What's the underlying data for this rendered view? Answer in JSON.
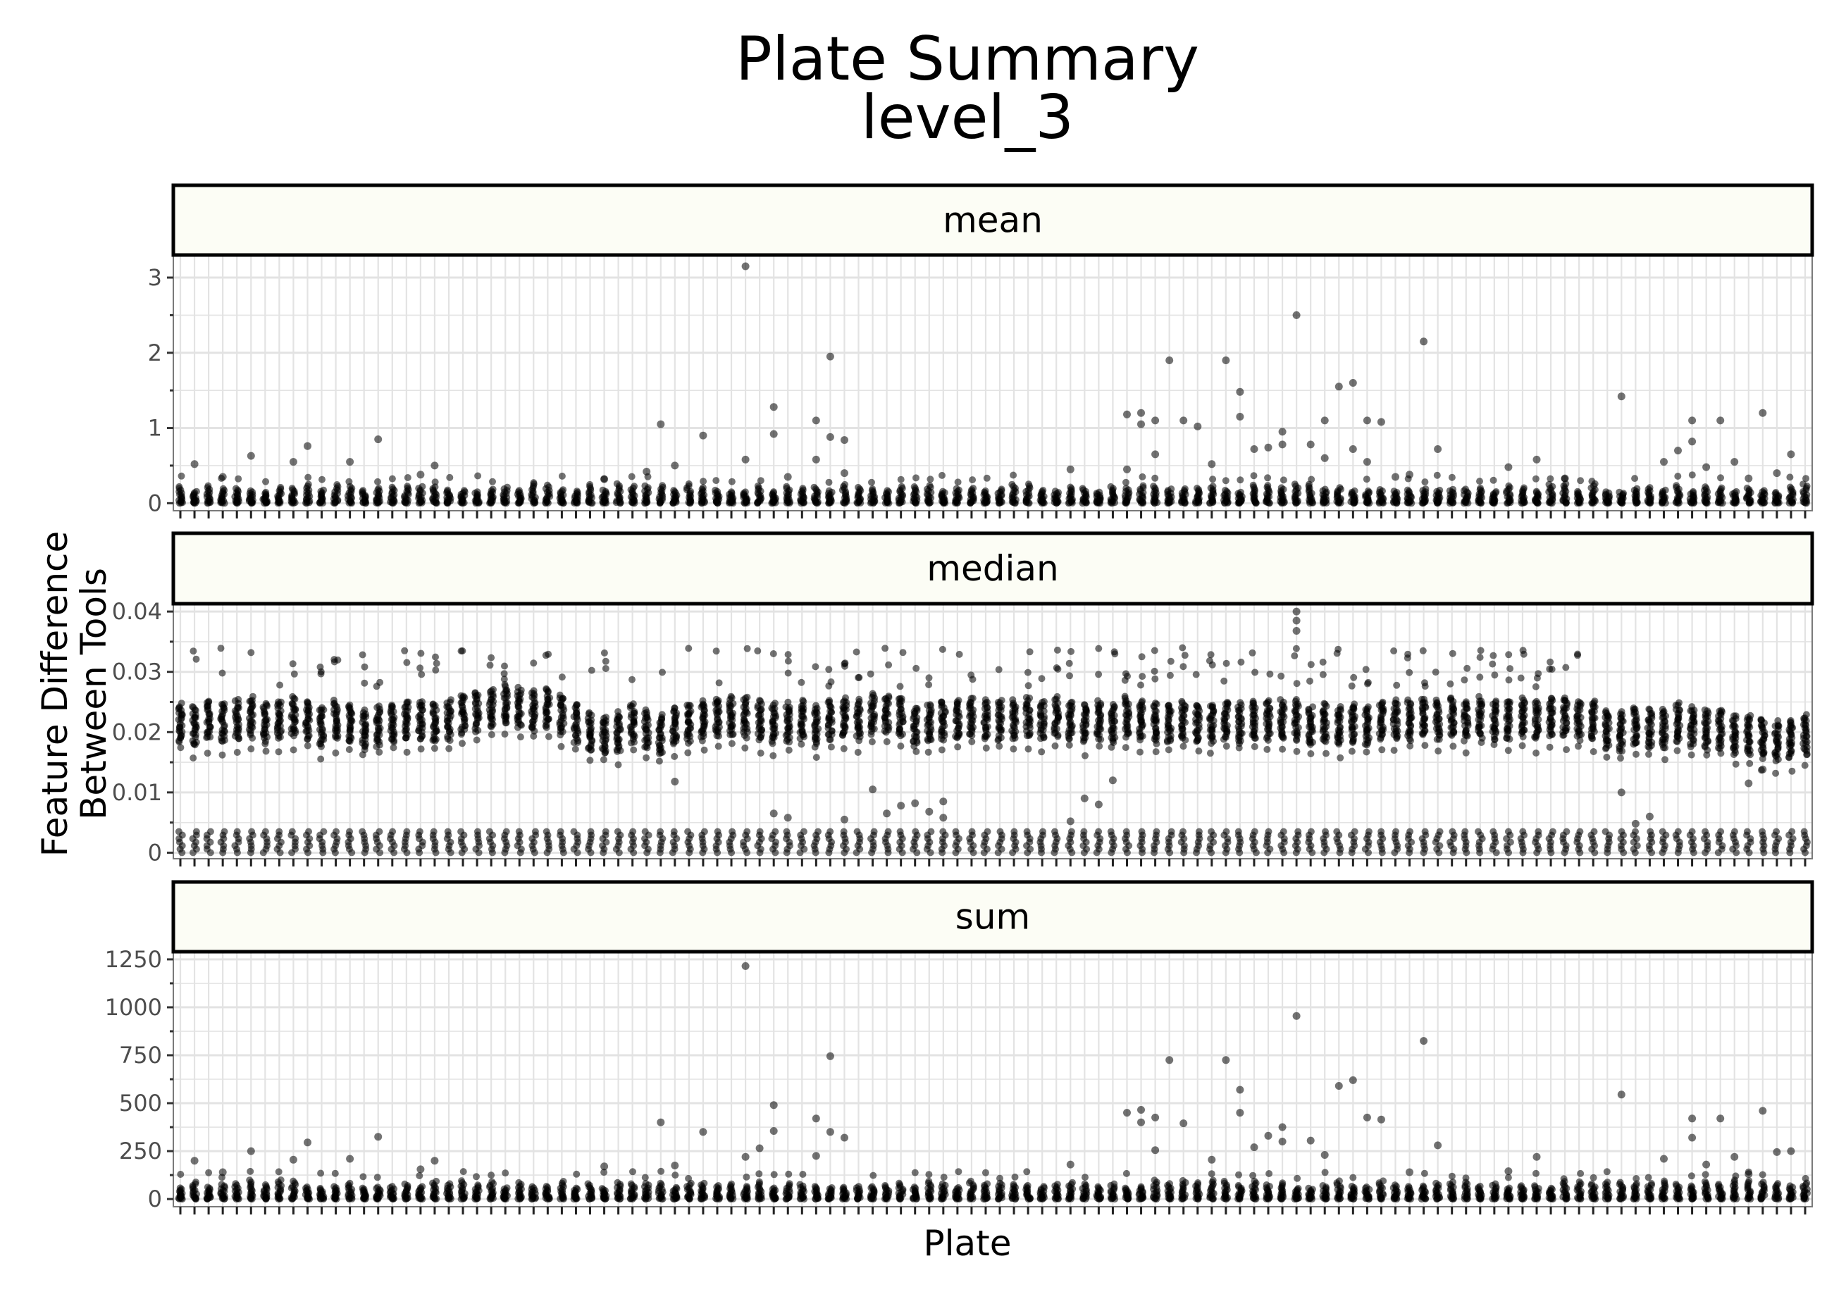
{
  "chart_data": {
    "type": "scatter",
    "title": "Plate Summary",
    "subtitle": "level_3",
    "xlabel": "Plate",
    "ylabel_lines": [
      "Feature Difference",
      "Between Tools"
    ],
    "grid": true,
    "legend": "none",
    "n_plates": 116,
    "colors": {
      "points": "#000000",
      "grid": "#e3e3e3",
      "strip_fill": "#fcfdf5",
      "frame": "#000000",
      "tick_text": "#4d4d4d",
      "text": "#000000"
    },
    "facets": [
      {
        "label": "mean",
        "ylim": [
          -0.1,
          3.3
        ],
        "yticks": [
          0,
          1,
          2,
          3
        ],
        "ytick_labels": [
          "0",
          "1",
          "2",
          "3"
        ],
        "bulk_range": [
          0.0,
          0.26
        ],
        "outliers": [
          {
            "x": 40,
            "y": 3.15
          },
          {
            "x": 46,
            "y": 1.95
          },
          {
            "x": 79,
            "y": 2.5
          },
          {
            "x": 88,
            "y": 2.15
          },
          {
            "x": 70,
            "y": 1.9
          },
          {
            "x": 74,
            "y": 1.9
          },
          {
            "x": 83,
            "y": 1.6
          },
          {
            "x": 82,
            "y": 1.55
          },
          {
            "x": 75,
            "y": 1.48
          },
          {
            "x": 102,
            "y": 1.42
          },
          {
            "x": 42,
            "y": 1.28
          },
          {
            "x": 112,
            "y": 1.2
          },
          {
            "x": 68,
            "y": 1.2
          },
          {
            "x": 67,
            "y": 1.18
          },
          {
            "x": 75,
            "y": 1.15
          },
          {
            "x": 69,
            "y": 1.1
          },
          {
            "x": 71,
            "y": 1.1
          },
          {
            "x": 84,
            "y": 1.1
          },
          {
            "x": 85,
            "y": 1.08
          },
          {
            "x": 81,
            "y": 1.1
          },
          {
            "x": 107,
            "y": 1.1
          },
          {
            "x": 109,
            "y": 1.1
          },
          {
            "x": 45,
            "y": 1.1
          },
          {
            "x": 34,
            "y": 1.05
          },
          {
            "x": 68,
            "y": 1.05
          },
          {
            "x": 72,
            "y": 1.02
          },
          {
            "x": 78,
            "y": 0.95
          },
          {
            "x": 42,
            "y": 0.92
          },
          {
            "x": 37,
            "y": 0.9
          },
          {
            "x": 46,
            "y": 0.88
          },
          {
            "x": 47,
            "y": 0.84
          },
          {
            "x": 14,
            "y": 0.85
          },
          {
            "x": 107,
            "y": 0.82
          },
          {
            "x": 78,
            "y": 0.78
          },
          {
            "x": 80,
            "y": 0.78
          },
          {
            "x": 77,
            "y": 0.74
          },
          {
            "x": 76,
            "y": 0.72
          },
          {
            "x": 89,
            "y": 0.72
          },
          {
            "x": 83,
            "y": 0.72
          },
          {
            "x": 106,
            "y": 0.7
          },
          {
            "x": 5,
            "y": 0.63
          },
          {
            "x": 9,
            "y": 0.76
          },
          {
            "x": 69,
            "y": 0.65
          },
          {
            "x": 40,
            "y": 0.58
          },
          {
            "x": 114,
            "y": 0.65
          },
          {
            "x": 45,
            "y": 0.58
          },
          {
            "x": 81,
            "y": 0.6
          },
          {
            "x": 96,
            "y": 0.58
          },
          {
            "x": 1,
            "y": 0.52
          },
          {
            "x": 8,
            "y": 0.55
          },
          {
            "x": 12,
            "y": 0.55
          },
          {
            "x": 18,
            "y": 0.5
          },
          {
            "x": 35,
            "y": 0.5
          },
          {
            "x": 73,
            "y": 0.52
          },
          {
            "x": 84,
            "y": 0.55
          },
          {
            "x": 105,
            "y": 0.55
          },
          {
            "x": 110,
            "y": 0.55
          },
          {
            "x": 67,
            "y": 0.45
          },
          {
            "x": 63,
            "y": 0.45
          },
          {
            "x": 108,
            "y": 0.48
          },
          {
            "x": 94,
            "y": 0.48
          },
          {
            "x": 33,
            "y": 0.42
          },
          {
            "x": 47,
            "y": 0.4
          },
          {
            "x": 87,
            "y": 0.38
          },
          {
            "x": 113,
            "y": 0.4
          },
          {
            "x": 3,
            "y": 0.35
          },
          {
            "x": 17,
            "y": 0.38
          },
          {
            "x": 30,
            "y": 0.32
          },
          {
            "x": 86,
            "y": 0.35
          },
          {
            "x": 98,
            "y": 0.33
          },
          {
            "x": 111,
            "y": 0.33
          },
          {
            "x": 43,
            "y": 0.35
          }
        ]
      },
      {
        "label": "median",
        "ylim": [
          -0.001,
          0.0413
        ],
        "yticks": [
          0,
          0.01,
          0.02,
          0.03,
          0.04
        ],
        "ytick_labels": [
          "0",
          "0.01",
          "0.02",
          "0.03",
          "0.04"
        ],
        "zero_cluster": [
          0.0,
          0.0035
        ],
        "band_center": [
          0.0215,
          0.021,
          0.022,
          0.0215,
          0.022,
          0.0225,
          0.0215,
          0.022,
          0.0225,
          0.022,
          0.021,
          0.022,
          0.0215,
          0.0205,
          0.021,
          0.0215,
          0.022,
          0.022,
          0.0215,
          0.022,
          0.023,
          0.0235,
          0.024,
          0.0245,
          0.024,
          0.0235,
          0.024,
          0.023,
          0.0215,
          0.02,
          0.0195,
          0.02,
          0.0215,
          0.0205,
          0.0195,
          0.021,
          0.0215,
          0.022,
          0.0225,
          0.0225,
          0.0225,
          0.022,
          0.0215,
          0.0215,
          0.022,
          0.021,
          0.022,
          0.0225,
          0.022,
          0.023,
          0.023,
          0.0225,
          0.021,
          0.0215,
          0.022,
          0.022,
          0.0225,
          0.022,
          0.022,
          0.022,
          0.0225,
          0.022,
          0.0225,
          0.022,
          0.0215,
          0.022,
          0.0215,
          0.0225,
          0.022,
          0.0215,
          0.0215,
          0.022,
          0.0215,
          0.0215,
          0.022,
          0.0215,
          0.022,
          0.022,
          0.022,
          0.022,
          0.021,
          0.0215,
          0.021,
          0.0215,
          0.021,
          0.022,
          0.022,
          0.022,
          0.0225,
          0.022,
          0.0225,
          0.022,
          0.0225,
          0.022,
          0.022,
          0.0225,
          0.022,
          0.0225,
          0.0225,
          0.022,
          0.022,
          0.0205,
          0.02,
          0.021,
          0.0205,
          0.0205,
          0.0215,
          0.021,
          0.0205,
          0.0205,
          0.0195,
          0.0195,
          0.019,
          0.0185,
          0.019,
          0.0195
        ],
        "band_halfwidth": 0.0032,
        "upper_cluster_plates": [
          1,
          3,
          5,
          7,
          8,
          10,
          11,
          13,
          14,
          16,
          17,
          18,
          20,
          22,
          23,
          25,
          26,
          27,
          29,
          30,
          32,
          34,
          36,
          38,
          40,
          41,
          42,
          43,
          44,
          45,
          46,
          47,
          48,
          49,
          50,
          51,
          52,
          53,
          54,
          55,
          56,
          58,
          60,
          61,
          62,
          63,
          65,
          66,
          67,
          68,
          69,
          70,
          71,
          72,
          73,
          74,
          75,
          76,
          77,
          78,
          79,
          80,
          81,
          82,
          83,
          84,
          86,
          87,
          88,
          89,
          90,
          91,
          92,
          93,
          94,
          95,
          96,
          97,
          98,
          99
        ],
        "outliers": [
          {
            "x": 79,
            "y": 0.04
          },
          {
            "x": 79,
            "y": 0.0385
          },
          {
            "x": 79,
            "y": 0.0368
          },
          {
            "x": 35,
            "y": 0.0118
          },
          {
            "x": 49,
            "y": 0.0105
          },
          {
            "x": 51,
            "y": 0.0078
          },
          {
            "x": 52,
            "y": 0.0082
          },
          {
            "x": 53,
            "y": 0.0068
          },
          {
            "x": 54,
            "y": 0.0085
          },
          {
            "x": 54,
            "y": 0.0058
          },
          {
            "x": 50,
            "y": 0.0065
          },
          {
            "x": 47,
            "y": 0.0055
          },
          {
            "x": 42,
            "y": 0.0065
          },
          {
            "x": 43,
            "y": 0.0058
          },
          {
            "x": 63,
            "y": 0.0052
          },
          {
            "x": 64,
            "y": 0.009
          },
          {
            "x": 65,
            "y": 0.008
          },
          {
            "x": 66,
            "y": 0.012
          },
          {
            "x": 102,
            "y": 0.01
          },
          {
            "x": 103,
            "y": 0.0048
          },
          {
            "x": 104,
            "y": 0.006
          },
          {
            "x": 111,
            "y": 0.0115
          },
          {
            "x": 112,
            "y": 0.0138
          }
        ]
      },
      {
        "label": "sum",
        "ylim": [
          -40,
          1290
        ],
        "yticks": [
          0,
          250,
          500,
          750,
          1000,
          1250
        ],
        "ytick_labels": [
          "0",
          "250",
          "500",
          "750",
          "1000",
          "1250"
        ],
        "bulk_range": [
          0,
          100
        ],
        "outliers": [
          {
            "x": 40,
            "y": 1215
          },
          {
            "x": 79,
            "y": 955
          },
          {
            "x": 88,
            "y": 825
          },
          {
            "x": 46,
            "y": 745
          },
          {
            "x": 70,
            "y": 725
          },
          {
            "x": 74,
            "y": 725
          },
          {
            "x": 83,
            "y": 620
          },
          {
            "x": 82,
            "y": 590
          },
          {
            "x": 75,
            "y": 570
          },
          {
            "x": 102,
            "y": 545
          },
          {
            "x": 42,
            "y": 490
          },
          {
            "x": 112,
            "y": 460
          },
          {
            "x": 67,
            "y": 450
          },
          {
            "x": 68,
            "y": 465
          },
          {
            "x": 69,
            "y": 425
          },
          {
            "x": 45,
            "y": 420
          },
          {
            "x": 85,
            "y": 415
          },
          {
            "x": 107,
            "y": 420
          },
          {
            "x": 109,
            "y": 420
          },
          {
            "x": 84,
            "y": 425
          },
          {
            "x": 34,
            "y": 400
          },
          {
            "x": 75,
            "y": 450
          },
          {
            "x": 71,
            "y": 395
          },
          {
            "x": 78,
            "y": 375
          },
          {
            "x": 68,
            "y": 400
          },
          {
            "x": 42,
            "y": 355
          },
          {
            "x": 37,
            "y": 350
          },
          {
            "x": 46,
            "y": 350
          },
          {
            "x": 47,
            "y": 320
          },
          {
            "x": 14,
            "y": 325
          },
          {
            "x": 107,
            "y": 320
          },
          {
            "x": 77,
            "y": 330
          },
          {
            "x": 80,
            "y": 305
          },
          {
            "x": 9,
            "y": 295
          },
          {
            "x": 78,
            "y": 300
          },
          {
            "x": 89,
            "y": 280
          },
          {
            "x": 41,
            "y": 265
          },
          {
            "x": 5,
            "y": 250
          },
          {
            "x": 114,
            "y": 250
          },
          {
            "x": 69,
            "y": 255
          },
          {
            "x": 45,
            "y": 225
          },
          {
            "x": 40,
            "y": 220
          },
          {
            "x": 113,
            "y": 245
          },
          {
            "x": 76,
            "y": 270
          },
          {
            "x": 81,
            "y": 230
          },
          {
            "x": 1,
            "y": 200
          },
          {
            "x": 12,
            "y": 210
          },
          {
            "x": 18,
            "y": 200
          },
          {
            "x": 8,
            "y": 205
          },
          {
            "x": 35,
            "y": 175
          },
          {
            "x": 63,
            "y": 180
          },
          {
            "x": 96,
            "y": 220
          },
          {
            "x": 105,
            "y": 210
          },
          {
            "x": 110,
            "y": 220
          },
          {
            "x": 73,
            "y": 205
          },
          {
            "x": 3,
            "y": 140
          },
          {
            "x": 17,
            "y": 155
          },
          {
            "x": 30,
            "y": 170
          },
          {
            "x": 87,
            "y": 140
          },
          {
            "x": 108,
            "y": 180
          },
          {
            "x": 94,
            "y": 145
          },
          {
            "x": 111,
            "y": 130
          }
        ]
      }
    ]
  }
}
